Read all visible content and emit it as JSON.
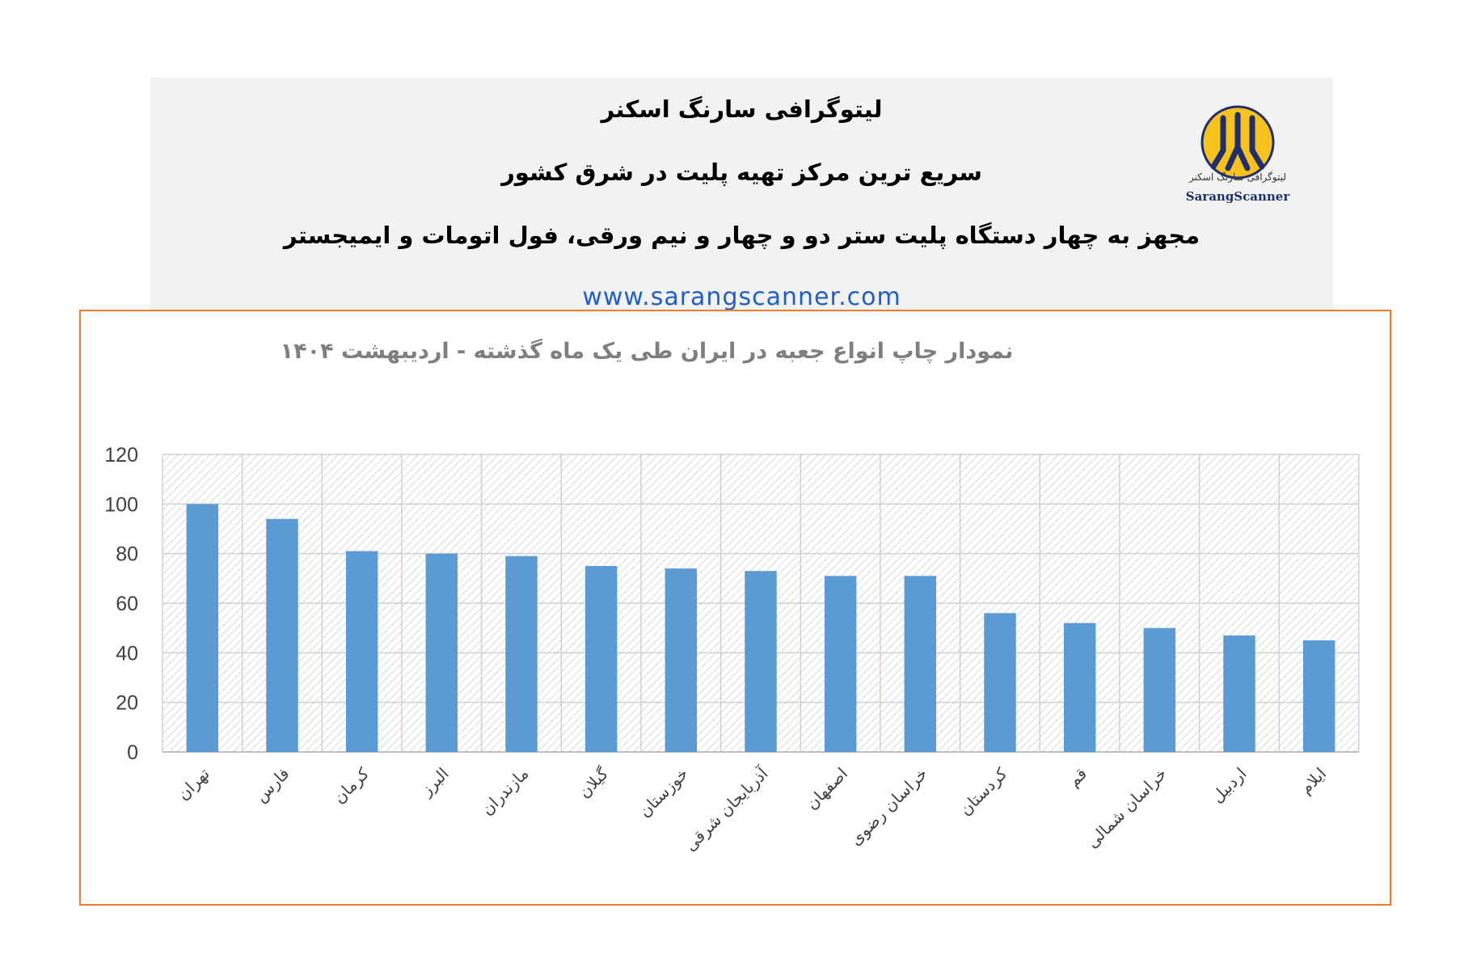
{
  "header": {
    "title": "لیتوگرافی سارنگ اسکنر",
    "subtitle": "سریع ترین مرکز تهیه پلیت در شرق کشور",
    "description": "مجهز به چهار دستگاه پلیت ستر دو و چهار و نیم ورقی، فول اتومات و ایمیجستر",
    "website": "www.sarangscanner.com",
    "logo_caption": "لیتوگرافی سارنگ اسکنر",
    "logo_brand": "SarangScanner"
  },
  "colors": {
    "bar": "#5b9bd5",
    "frame": "#f07b2e",
    "website": "#1f5fc8",
    "logo_yellow": "#f6c21b",
    "logo_blue": "#1f2e6e"
  },
  "chart_data": {
    "type": "bar",
    "title": "نمودار چاپ انواع جعبه در ایران طی یک ماه گذشته - اردیبهشت ۱۴۰۴",
    "categories": [
      "تهران",
      "فارس",
      "کرمان",
      "البرز",
      "مازندران",
      "گیلان",
      "خوزستان",
      "آذربایجان شرقی",
      "اصفهان",
      "خراسان رضوی",
      "کردستان",
      "قم",
      "خراسان شمالی",
      "اردبیل",
      "ایلام"
    ],
    "values": [
      100,
      94,
      81,
      80,
      79,
      75,
      74,
      73,
      71,
      71,
      56,
      52,
      50,
      47,
      45
    ],
    "ylim": [
      0,
      120
    ],
    "yticks": [
      0,
      20,
      40,
      60,
      80,
      100,
      120
    ],
    "xlabel": "",
    "ylabel": "",
    "grid": true,
    "legend": "none"
  }
}
